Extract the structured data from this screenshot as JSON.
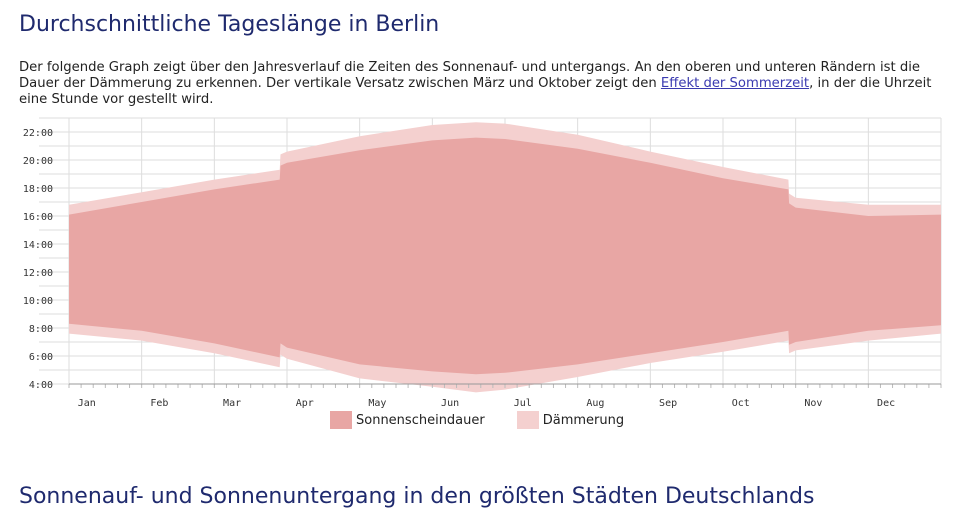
{
  "heading": "Durchschnittliche Tageslänge in Berlin",
  "intro": {
    "text_before": "Der folgende Graph zeigt über den Jahresverlauf die Zeiten des Sonnenauf- und untergangs. An den oberen und unteren Rändern ist die Dauer der Dämmerung zu erkennen. Der vertikale Versatz zwischen März und Oktober zeigt den ",
    "link_text": "Effekt der Sommerzeit",
    "text_after": ", in der die Uhrzeit eine Stunde vor gestellt wird."
  },
  "section_heading": "Sonnenauf- und Sonnenuntergang in den größten Städten Deutschlands",
  "colors": {
    "sunshine": "#e8a6a4",
    "twilight": "#f4d0cf",
    "grid": "#dddddd",
    "heading": "#1f2a6e"
  },
  "chart_data": {
    "type": "area",
    "x_unit": "month (0 = Jan 1, 12 = Dec 31)",
    "y_unit": "hour of day",
    "ylim": [
      4,
      23
    ],
    "yticks": [
      "4:00",
      "6:00",
      "8:00",
      "10:00",
      "12:00",
      "14:00",
      "16:00",
      "18:00",
      "20:00",
      "22:00"
    ],
    "month_labels": [
      "Jan",
      "Feb",
      "Mar",
      "Apr",
      "May",
      "Jun",
      "Jul",
      "Aug",
      "Sep",
      "Oct",
      "Nov",
      "Dec"
    ],
    "legend": [
      {
        "key": "sunshine",
        "label": "Sonnenscheindauer"
      },
      {
        "key": "twilight",
        "label": "Dämmerung"
      }
    ],
    "x": [
      0,
      1,
      2,
      2.9,
      2.91,
      3,
      4,
      5,
      5.6,
      6,
      7,
      8,
      9,
      9.9,
      9.91,
      10,
      11,
      12
    ],
    "sunrise": [
      8.3,
      7.8,
      6.9,
      5.9,
      6.9,
      6.6,
      5.4,
      4.9,
      4.7,
      4.8,
      5.4,
      6.2,
      7.0,
      7.8,
      6.8,
      7.0,
      7.8,
      8.2
    ],
    "sunset": [
      16.1,
      17.0,
      17.9,
      18.6,
      19.6,
      19.8,
      20.7,
      21.4,
      21.6,
      21.5,
      20.8,
      19.8,
      18.7,
      17.9,
      16.9,
      16.6,
      16.0,
      16.1
    ],
    "dawn": [
      7.6,
      7.1,
      6.2,
      5.2,
      6.1,
      5.8,
      4.4,
      3.8,
      3.4,
      3.6,
      4.5,
      5.5,
      6.3,
      7.1,
      6.2,
      6.4,
      7.1,
      7.6
    ],
    "dusk": [
      16.8,
      17.7,
      18.6,
      19.3,
      20.4,
      20.6,
      21.7,
      22.5,
      22.7,
      22.6,
      21.8,
      20.6,
      19.5,
      18.6,
      17.6,
      17.3,
      16.8,
      16.8
    ]
  }
}
